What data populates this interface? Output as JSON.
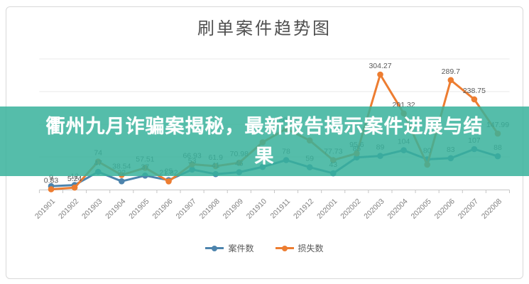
{
  "chart_data": {
    "type": "line",
    "title": "刷单案件趋势图",
    "categories": [
      "201901",
      "201902",
      "201903",
      "201904",
      "201905",
      "201906",
      "201907",
      "201908",
      "201909",
      "201910",
      "201911",
      "201912",
      "202001",
      "202002",
      "202003",
      "202004",
      "202005",
      "202006",
      "202007",
      "202008"
    ],
    "series": [
      {
        "name": "案件数",
        "color": "#4d84ad",
        "values": [
          9,
          12,
          47,
          22,
          37,
          25,
          53,
          41,
          46,
          60,
          78,
          59,
          43,
          85,
          89,
          104,
          80,
          83,
          107,
          88
        ],
        "labels": [
          "9",
          "12",
          "47",
          "22",
          "37",
          "25",
          "53",
          "41",
          "46",
          null,
          "78",
          "59",
          "43",
          "85",
          "89",
          "104",
          "80",
          "83",
          "107",
          "88"
        ]
      },
      {
        "name": "损失数",
        "color": "#ed7d31",
        "values": [
          0.83,
          5.24,
          74,
          38.54,
          57.51,
          21.82,
          66.93,
          61.9,
          70.98,
          125,
          160.83,
          130,
          77.73,
          95.6,
          304.27,
          201.32,
          66,
          289.7,
          238.75,
          147.99
        ],
        "labels": [
          "0.83",
          "5.24",
          "74",
          "38.54",
          "57.51",
          "21.82",
          "66.93",
          "61.9",
          "70.98",
          null,
          "160.83",
          null,
          "77.73",
          "95.6",
          "304.27",
          "201.32",
          null,
          "289.7",
          "238.75",
          "147.99"
        ]
      }
    ],
    "xlabel": "",
    "ylabel": "",
    "ylim": [
      0,
      390
    ],
    "grid": true,
    "legend_position": "bottom",
    "label_color": "#595959",
    "axis_color": "#c6c6c6",
    "gridline_color": "#e8e8e8"
  },
  "banner": {
    "full_text": "衢州九月诈骗案揭秘，最新报告揭示案件进展与结果",
    "lines": [
      "衢州九月诈骗案揭秘，最新报告揭示案件进展与结",
      "果"
    ],
    "bg_color": "#37b29b",
    "text_color": "#ffffff"
  }
}
